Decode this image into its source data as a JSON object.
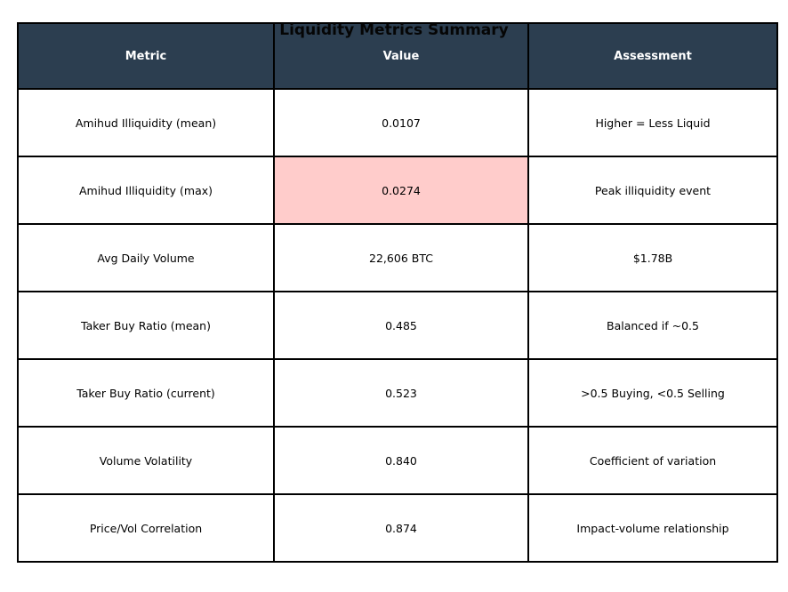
{
  "figure": {
    "title": "Liquidity Metrics Summary"
  },
  "chart_data": {
    "type": "table",
    "title": "Liquidity Metrics Summary",
    "columns": [
      "Metric",
      "Value",
      "Assessment"
    ],
    "rows": [
      [
        "Amihud Illiquidity (mean)",
        "0.0107",
        "Higher = Less Liquid"
      ],
      [
        "Amihud Illiquidity (max)",
        "0.0274",
        "Peak illiquidity event"
      ],
      [
        "Avg Daily Volume",
        "22,606 BTC",
        "$1.78B"
      ],
      [
        "Taker Buy Ratio (mean)",
        "0.485",
        "Balanced if ~0.5"
      ],
      [
        "Taker Buy Ratio (current)",
        "0.523",
        ">0.5 Buying, <0.5 Selling"
      ],
      [
        "Volume Volatility",
        "0.840",
        "Coefficient of variation"
      ],
      [
        "Price/Vol Correlation",
        "0.874",
        "Impact-volume relationship"
      ]
    ],
    "highlighted_cell": {
      "row": 1,
      "col": 1,
      "color": "#ffcccb"
    },
    "colors": {
      "header_bg": "#2c3e50",
      "header_text": "#ffffff",
      "body_text": "#000000",
      "grid_line": "#000000",
      "background": "#ffffff"
    },
    "legend": "none",
    "grid": "full cell borders"
  }
}
